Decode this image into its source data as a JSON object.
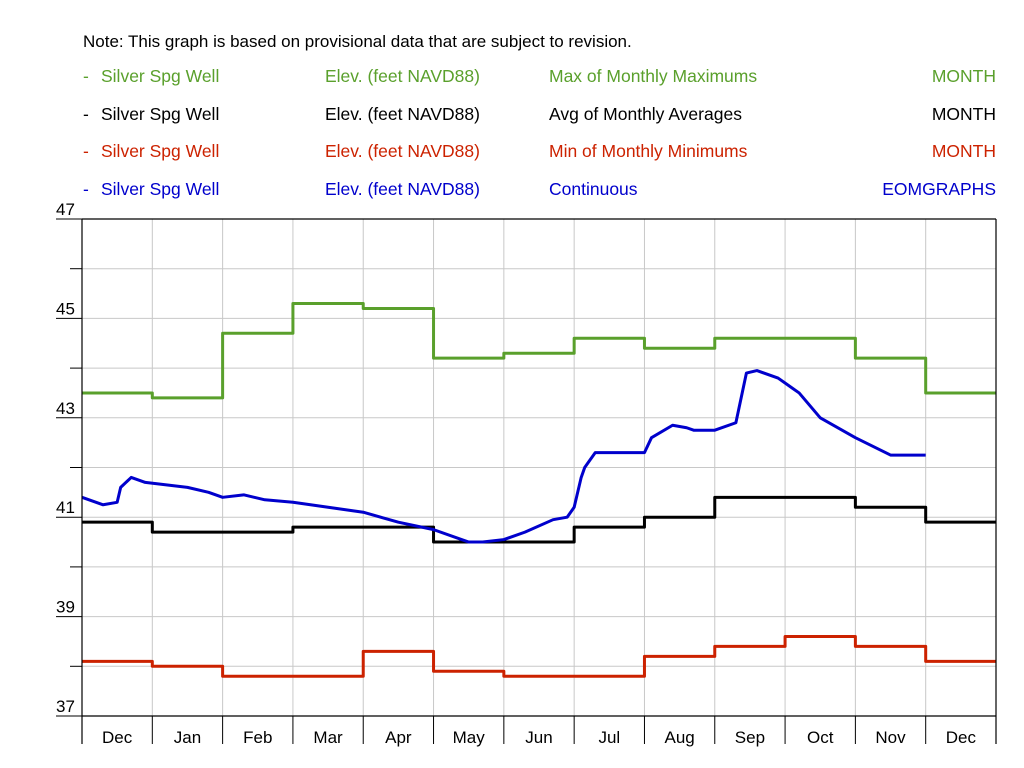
{
  "note": "Note: This graph is based on provisional data that are subject to revision.",
  "legend": [
    {
      "dash": "-",
      "site": "Silver Spg Well",
      "parameter": "Elev. (feet NAVD88)",
      "statistic": "Max of Monthly Maximums",
      "period": "MONTH",
      "color": "#5aa02c"
    },
    {
      "dash": "-",
      "site": "Silver Spg Well",
      "parameter": "Elev. (feet NAVD88)",
      "statistic": "Avg of Monthly Averages",
      "period": "MONTH",
      "color": "#000000"
    },
    {
      "dash": "-",
      "site": "Silver Spg Well",
      "parameter": "Elev. (feet NAVD88)",
      "statistic": "Min of Monthly Minimums",
      "period": "MONTH",
      "color": "#cc2200"
    },
    {
      "dash": "-",
      "site": "Silver Spg Well",
      "parameter": "Elev. (feet NAVD88)",
      "statistic": "Continuous",
      "period": "EOMGRAPHS",
      "color": "#0000cc"
    }
  ],
  "chart_data": {
    "type": "line",
    "title": "",
    "xlabel": "",
    "ylabel": "",
    "categories": [
      "Dec",
      "Jan",
      "Feb",
      "Mar",
      "Apr",
      "May",
      "Jun",
      "Jul",
      "Aug",
      "Sep",
      "Oct",
      "Nov",
      "Dec"
    ],
    "ylim": [
      37,
      47
    ],
    "y_ticks": [
      37,
      39,
      41,
      43,
      45,
      47
    ],
    "grid": true,
    "series": [
      {
        "name": "Max of Monthly Maximums",
        "step": true,
        "color": "#5aa02c",
        "values": [
          43.5,
          43.4,
          44.7,
          45.3,
          45.2,
          44.2,
          44.3,
          44.6,
          44.4,
          44.6,
          44.6,
          44.2,
          43.5
        ]
      },
      {
        "name": "Avg of Monthly Averages",
        "step": true,
        "color": "#000000",
        "values": [
          40.9,
          40.7,
          40.7,
          40.8,
          40.8,
          40.5,
          40.5,
          40.8,
          41.0,
          41.4,
          41.4,
          41.2,
          40.9
        ]
      },
      {
        "name": "Min of Monthly Minimums",
        "step": true,
        "color": "#cc2200",
        "values": [
          38.1,
          38.0,
          37.8,
          37.8,
          38.3,
          37.9,
          37.8,
          37.8,
          38.2,
          38.4,
          38.6,
          38.4,
          38.1
        ]
      },
      {
        "name": "Continuous",
        "step": false,
        "color": "#0000cc",
        "x": [
          0,
          0.3,
          0.5,
          0.55,
          0.7,
          0.9,
          1.2,
          1.5,
          1.8,
          2.0,
          2.3,
          2.6,
          3.0,
          3.5,
          4.0,
          4.5,
          5.0,
          5.5,
          5.7,
          6.0,
          6.3,
          6.7,
          6.9,
          7.0,
          7.1,
          7.15,
          7.2,
          7.3,
          7.6,
          8.0,
          8.1,
          8.4,
          8.6,
          8.7,
          9.0,
          9.3,
          9.45,
          9.6,
          9.9,
          10.1,
          10.2,
          10.5,
          11.0,
          11.5,
          12.0
        ],
        "y": [
          41.4,
          41.25,
          41.3,
          41.6,
          41.8,
          41.7,
          41.65,
          41.6,
          41.5,
          41.4,
          41.45,
          41.35,
          41.3,
          41.2,
          41.1,
          40.9,
          40.75,
          40.5,
          40.5,
          40.55,
          40.7,
          40.95,
          41.0,
          41.2,
          41.8,
          42.0,
          42.1,
          42.3,
          42.3,
          42.3,
          42.6,
          42.85,
          42.8,
          42.75,
          42.75,
          42.9,
          43.9,
          43.95,
          43.8,
          43.6,
          43.5,
          43.0,
          42.6,
          42.25,
          42.25
        ]
      }
    ]
  }
}
